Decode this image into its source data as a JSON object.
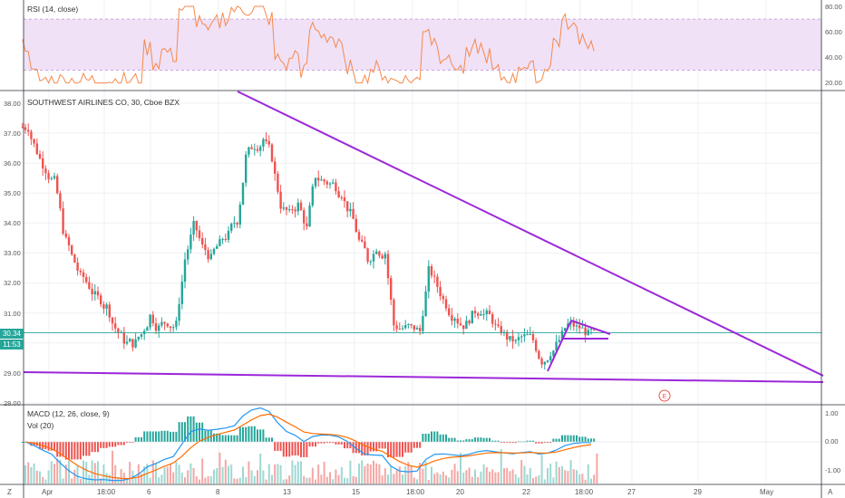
{
  "rsi_panel": {
    "label": "RSI (14, close)",
    "ticks": [
      "80.00",
      "60.00",
      "40.00",
      "20.00"
    ],
    "band_upper": 70,
    "band_lower": 30,
    "colors": {
      "band": "#f0e1f7",
      "line": "#f7894a"
    }
  },
  "main_panel": {
    "label": "SOUTHWEST AIRLINES CO, 30, Cboe BZX",
    "ticks": [
      "38.00",
      "37.00",
      "36.00",
      "35.00",
      "34.00",
      "33.00",
      "32.00",
      "31.00",
      "30.00",
      "29.00",
      "28.00"
    ],
    "last_price_label": "30.34",
    "countdown_label": "11:53",
    "earnings_marker": "E",
    "colors": {
      "up": "#26a69a",
      "down": "#ef5350",
      "trendline": "#9c27d9",
      "price_line": "#26a69a"
    }
  },
  "macd_panel": {
    "label": "MACD (12, 26, close, 9)",
    "vol_label": "Vol (20)",
    "ticks": [
      "1.00",
      "0.00",
      "-1.00"
    ],
    "colors": {
      "macd": "#2196f3",
      "signal": "#ff6d00"
    }
  },
  "x_axis": {
    "ticks": [
      "Apr",
      "18:00",
      "6",
      "8",
      "13",
      "15",
      "18:00",
      "20",
      "22",
      "18:00",
      "27",
      "29",
      "May"
    ]
  },
  "corner_labels": {
    "bottom_left": "Z",
    "bottom_right": "A"
  },
  "chart_data": {
    "type": "candlestick",
    "title": "SOUTHWEST AIRLINES CO, 30, Cboe BZX",
    "ylim": [
      28,
      38.5
    ],
    "price_series": [
      37.2,
      36.4,
      35.8,
      35.4,
      33.8,
      32.9,
      32.2,
      31.9,
      31.5,
      31.2,
      30.5,
      30.1,
      30.0,
      30.3,
      30.9,
      30.5,
      30.7,
      30.6,
      32.8,
      33.9,
      33.2,
      32.8,
      33.3,
      33.6,
      34.1,
      36.2,
      36.6,
      36.8,
      36.2,
      34.6,
      34.3,
      34.6,
      33.8,
      35.6,
      35.4,
      35.3,
      35.0,
      34.3,
      33.4,
      32.8,
      33.2,
      33.0,
      30.6,
      30.5,
      30.5,
      30.4,
      32.4,
      31.9,
      31.3,
      30.9,
      30.6,
      30.9,
      31.1,
      30.9,
      30.4,
      30.2,
      30.0,
      30.2,
      30.1,
      29.4,
      29.7,
      30.1,
      30.6,
      30.5,
      30.4,
      30.3
    ],
    "resistance_line": {
      "from": [
        1,
        38.3
      ],
      "to": [
        81,
        28.9
      ]
    },
    "support_line": {
      "from": [
        0,
        29.0
      ],
      "to": [
        81,
        28.7
      ]
    },
    "pennant": {
      "apex": 30.8,
      "upper_end": 30.38,
      "lower": 30.2,
      "pole_start": 29.1
    }
  }
}
